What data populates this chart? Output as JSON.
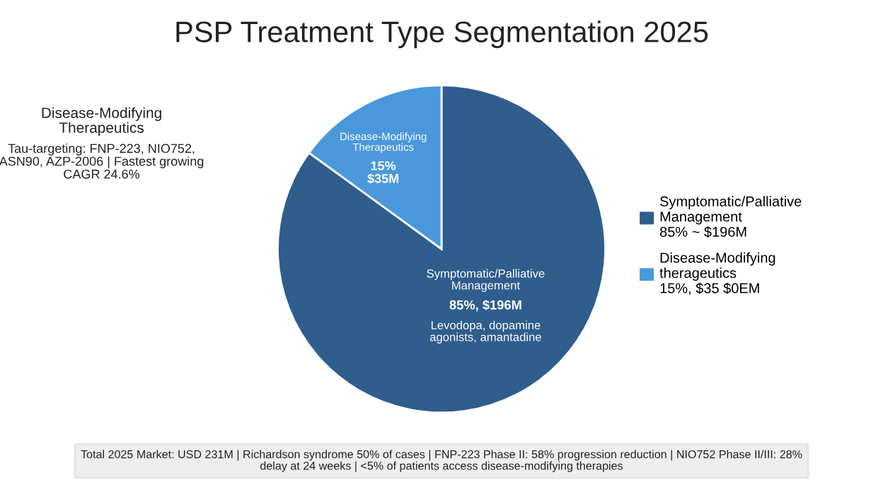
{
  "chart_data": {
    "type": "pie",
    "title": "PSP Treatment Type Segmentation 2025",
    "categories": [
      "Symptomatic/Palliative\nManagement\n85% ~ $196M",
      "Disease-Modifying\ntherageutics\n15%, $35 $0EM"
    ],
    "values": [
      85,
      15
    ],
    "colors": [
      "#2f5d8c",
      "#4a98db"
    ],
    "legend": "right",
    "annotations": [
      "Disease-Modifying\nTherapeutics",
      "Tau-targeting: FNP-223, NIO752,\nASN90, AZP-2006 | Fastest growing\nCAGR 24.6%",
      "Disease-Modifying\nTherapeutics",
      "15%\n$35M",
      "Symptomatic/Palliative\nManagement",
      "85%, $196M",
      "Levodopa, dopamine\nagonists, amantadine",
      "Total 2025 Market: USD 231M | Richardson syndrome 50% of cases | FNP-223 Phase II: 58% progression reduction | NIO752 Phase II/III: 28%\ndelay at 24 weeks | <5% of patients access disease-modifying therapies"
    ]
  }
}
